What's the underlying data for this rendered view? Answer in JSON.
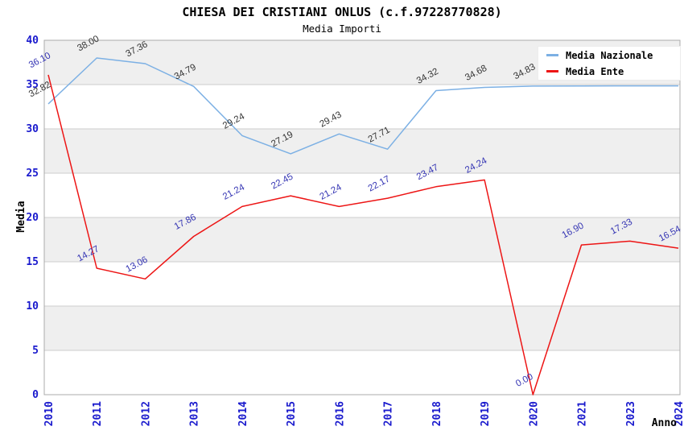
{
  "header": {
    "title": "CHIESA DEI CRISTIANI ONLUS (c.f.97228770828)",
    "subtitle": "Media Importi"
  },
  "chart_data": {
    "type": "line",
    "title": "CHIESA DEI CRISTIANI ONLUS (c.f.97228770828)",
    "subtitle": "Media Importi",
    "xlabel": "Anno",
    "ylabel": "Media",
    "ylim": [
      0,
      40
    ],
    "yticks": [
      0,
      5,
      10,
      15,
      20,
      25,
      30,
      35,
      40
    ],
    "grid": "horizontal-bands-alternating",
    "legend_position": "top-right",
    "categories": [
      "2010",
      "2011",
      "2012",
      "2013",
      "2014",
      "2015",
      "2016",
      "2017",
      "2018",
      "2019",
      "2020",
      "2021",
      "2023",
      "2024"
    ],
    "series": [
      {
        "name": "Media Nazionale",
        "color": "#7cb0e4",
        "label_color": "#333333",
        "values": [
          32.82,
          38.0,
          37.36,
          34.79,
          29.24,
          27.19,
          29.43,
          27.71,
          34.32,
          34.68,
          34.83,
          34.84,
          34.85,
          34.85
        ],
        "labels": [
          "32.82",
          "38.00",
          "37.36",
          "34.79",
          "29.24",
          "27.19",
          "29.43",
          "27.71",
          "34.32",
          "34.68",
          "34.83",
          null,
          null,
          "34.85"
        ]
      },
      {
        "name": "Media Ente",
        "color": "#ed1515",
        "label_color": "#3333b3",
        "values": [
          36.1,
          14.27,
          13.06,
          17.86,
          21.24,
          22.45,
          21.24,
          22.17,
          23.47,
          24.24,
          0.0,
          16.9,
          17.33,
          16.54
        ],
        "labels": [
          "36.10",
          "14.27",
          "13.06",
          "17.86",
          "21.24",
          "22.45",
          "21.24",
          "22.17",
          "23.47",
          "24.24",
          "0.00",
          "16.90",
          "17.33",
          "16.54"
        ]
      }
    ]
  },
  "colors": {
    "band": "#efefef",
    "grid": "#cccccc",
    "plot_border": "#ababab",
    "tick": "#1a1acd",
    "axis_title": "#000000",
    "background": "#ffffff"
  }
}
